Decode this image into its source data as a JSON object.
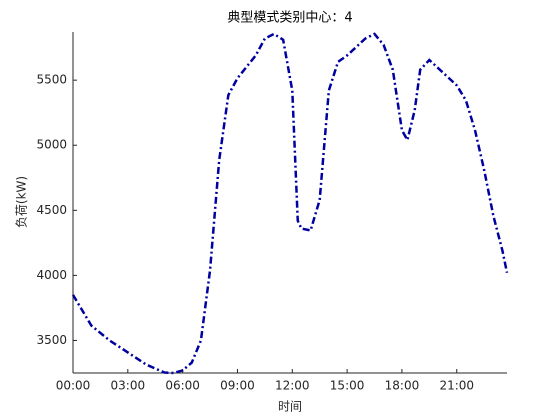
{
  "chart_data": {
    "type": "line",
    "title": "典型模式类别中心：4",
    "x_label": "时间",
    "y_label": "负荷(kW)",
    "x": [
      0,
      1,
      2,
      3,
      4,
      5,
      5.5,
      6,
      6.5,
      7,
      7.5,
      8,
      8.5,
      9,
      10,
      10.5,
      11,
      11.5,
      12,
      12.3,
      12.5,
      13,
      13.5,
      14,
      14.5,
      15,
      16,
      16.5,
      17,
      17.5,
      18,
      18.3,
      18.7,
      19,
      19.5,
      20,
      21,
      21.5,
      22,
      22.5,
      23,
      23.5,
      23.75
    ],
    "series": [
      {
        "name": "负荷",
        "color": "#0000a0",
        "values": [
          3850,
          3615,
          3500,
          3408,
          3315,
          3254,
          3250,
          3270,
          3330,
          3500,
          4040,
          4885,
          5385,
          5515,
          5690,
          5820,
          5855,
          5810,
          5420,
          4420,
          4360,
          4345,
          4580,
          5420,
          5640,
          5690,
          5820,
          5855,
          5770,
          5580,
          5115,
          5040,
          5270,
          5580,
          5655,
          5590,
          5460,
          5345,
          5115,
          4810,
          4460,
          4190,
          4020
        ]
      }
    ],
    "xlim": [
      0,
      23.75
    ],
    "xticks": [
      {
        "value": 0,
        "label": "00:00"
      },
      {
        "value": 3,
        "label": "03:00"
      },
      {
        "value": 6,
        "label": "06:00"
      },
      {
        "value": 9,
        "label": "09:00"
      },
      {
        "value": 12,
        "label": "12:00"
      },
      {
        "value": 15,
        "label": "15:00"
      },
      {
        "value": 18,
        "label": "18:00"
      },
      {
        "value": 21,
        "label": "21:00"
      }
    ],
    "ylim": [
      3250,
      5870
    ],
    "yticks": [
      3500,
      4000,
      4500,
      5000,
      5500
    ],
    "grid": false
  }
}
